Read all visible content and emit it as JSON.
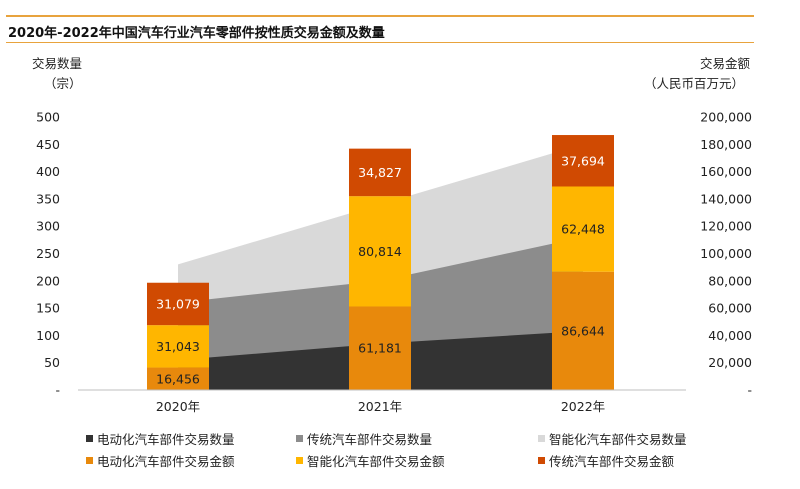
{
  "title": "2020年-2022年中国汽车行业汽车零部件按性质交易金额及数量",
  "y_left": {
    "title": "交易数量",
    "unit": "（宗）"
  },
  "y_right": {
    "title": "交易金额",
    "unit": "（人民币百万元）"
  },
  "legend": [
    {
      "label": "电动化汽车部件交易数量",
      "color": "#333333"
    },
    {
      "label": "传统汽车部件交易数量",
      "color": "#8c8c8c"
    },
    {
      "label": "智能化汽车部件交易数量",
      "color": "#d9d9d9"
    },
    {
      "label": "电动化汽车部件交易金额",
      "color": "#e8890c"
    },
    {
      "label": "智能化汽车部件交易金额",
      "color": "#ffb600"
    },
    {
      "label": "传统汽车部件交易金额",
      "color": "#d04a02"
    }
  ],
  "chart_data": {
    "type": "bar",
    "categories": [
      "2020年",
      "2021年",
      "2022年"
    ],
    "y_left": {
      "ticks": [
        "500",
        "450",
        "400",
        "350",
        "300",
        "250",
        "200",
        "150",
        "100",
        "50",
        "-"
      ],
      "ylim": [
        0,
        500
      ]
    },
    "y_right": {
      "ticks": [
        "200,000",
        "180,000",
        "160,000",
        "140,000",
        "120,000",
        "100,000",
        "80,000",
        "60,000",
        "40,000",
        "20,000",
        "-"
      ],
      "ylim": [
        0,
        200000
      ]
    },
    "area_series": [
      {
        "name": "电动化汽车部件交易数量",
        "color": "#333333",
        "values": [
          55,
          85,
          108
        ],
        "axis": "left"
      },
      {
        "name": "传统汽车部件交易数量",
        "color": "#8c8c8c",
        "values": [
          160,
          200,
          280
        ],
        "axis": "left"
      },
      {
        "name": "智能化汽车部件交易数量",
        "color": "#d9d9d9",
        "values": [
          230,
          340,
          450
        ],
        "axis": "left"
      }
    ],
    "bar_series": [
      {
        "name": "电动化汽车部件交易金额",
        "color": "#e8890c",
        "values": [
          16456,
          61181,
          86644
        ],
        "labels": [
          "16,456",
          "61,181",
          "86,644"
        ],
        "label_color": "#222222"
      },
      {
        "name": "智能化汽车部件交易金额",
        "color": "#ffb600",
        "values": [
          31043,
          80814,
          62448
        ],
        "labels": [
          "31,043",
          "80,814",
          "62,448"
        ],
        "label_color": "#222222"
      },
      {
        "name": "传统汽车部件交易金额",
        "color": "#d04a02",
        "values": [
          31079,
          34827,
          37694
        ],
        "labels": [
          "31,079",
          "34,827",
          "37,694"
        ],
        "label_color": "#ffffff"
      }
    ]
  }
}
